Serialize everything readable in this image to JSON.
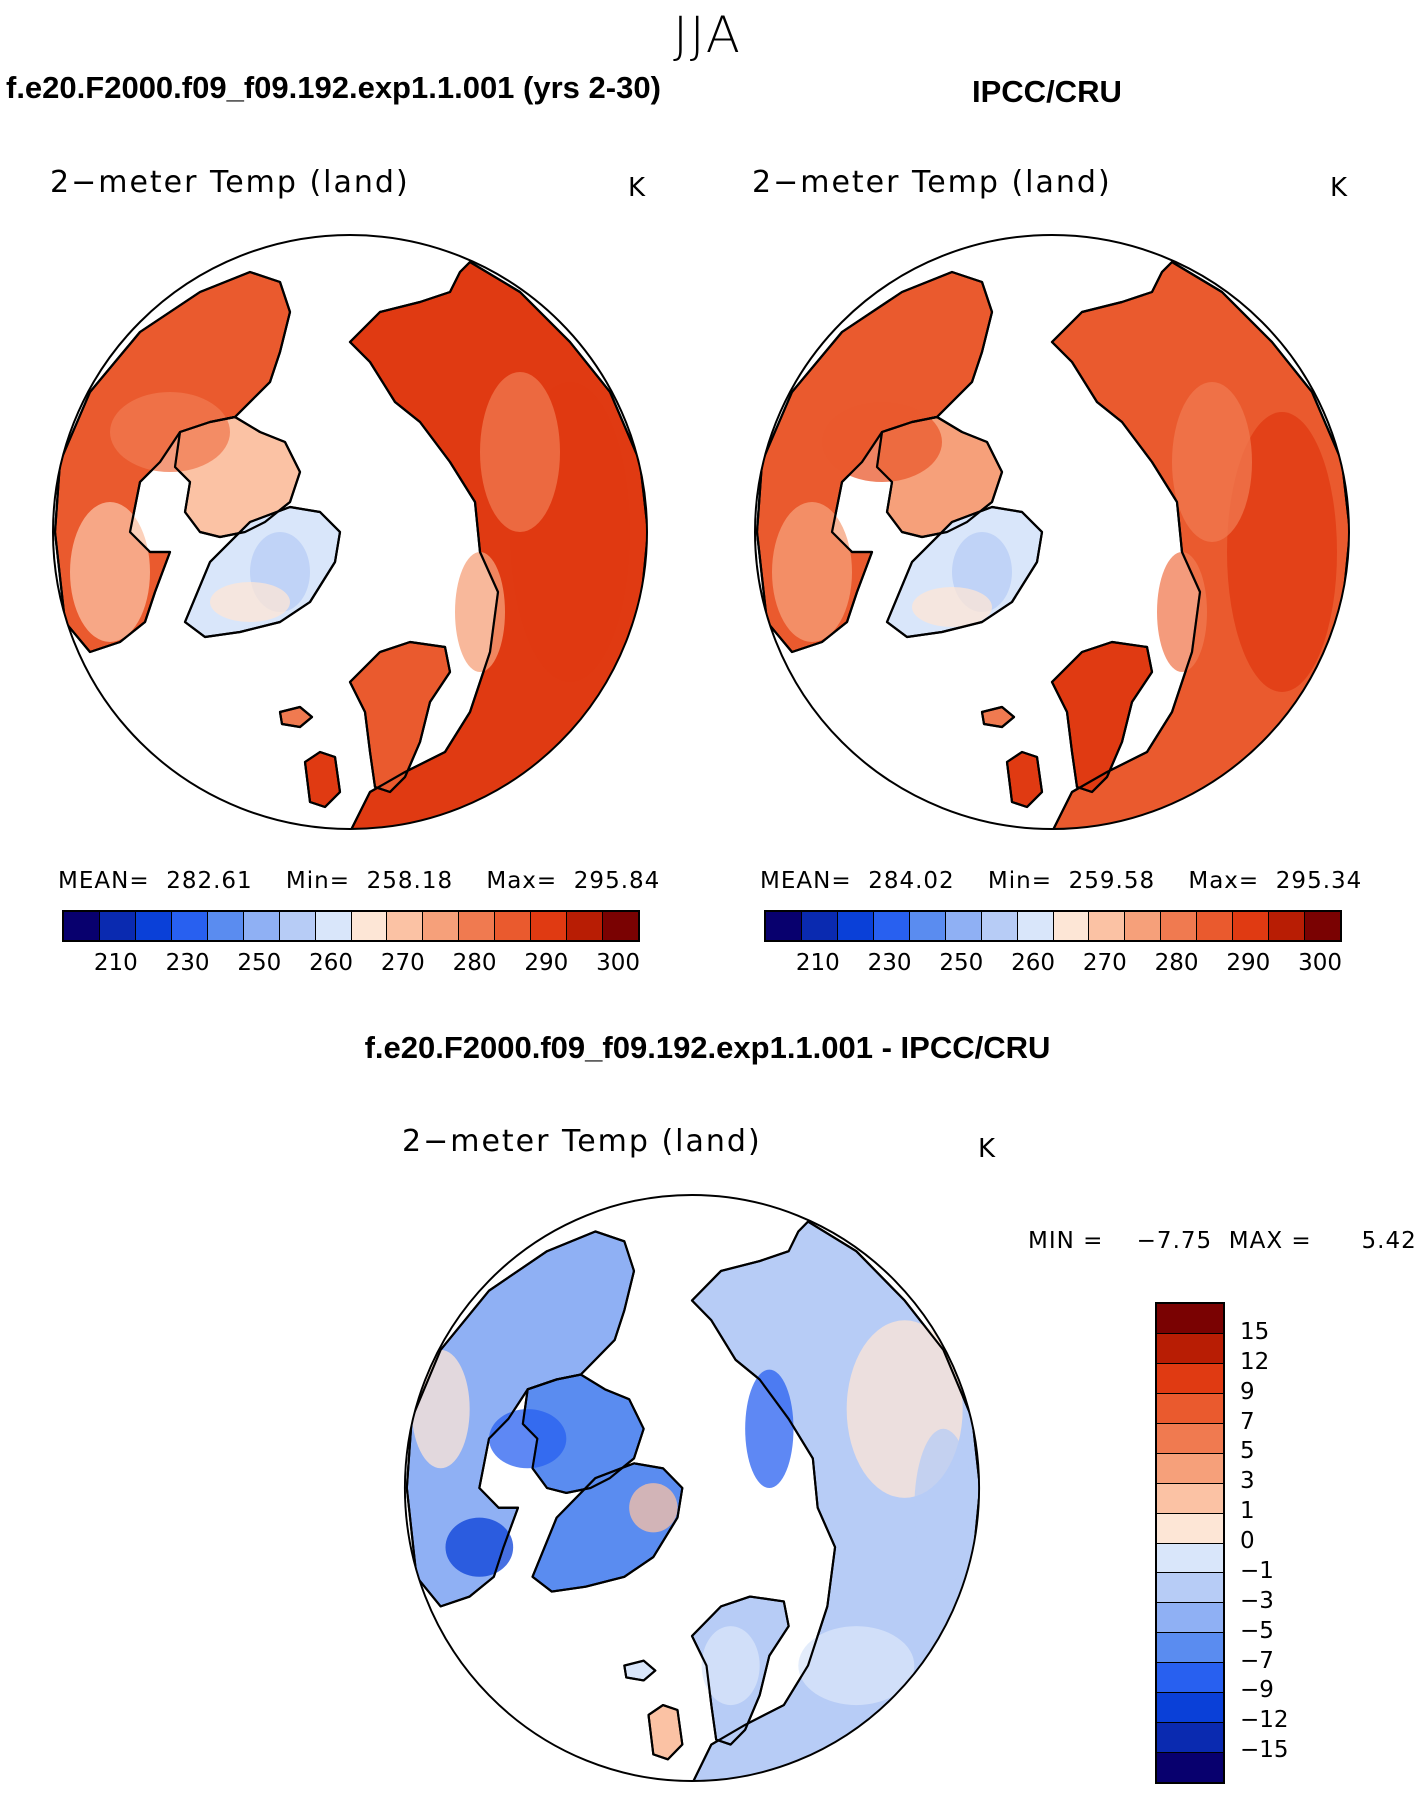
{
  "season": "JJA",
  "palette_abs": [
    "#08006e",
    "#0a2ab0",
    "#0a40d8",
    "#2860f0",
    "#5a8cf0",
    "#8fb0f4",
    "#b7ccf6",
    "#d9e6fa",
    "#fde6d6",
    "#fbc2a4",
    "#f6a07a",
    "#f07a50",
    "#ea5a2e",
    "#e03a12",
    "#b81d04",
    "#7a0202"
  ],
  "palette_diff": [
    "#08006e",
    "#0a2ab0",
    "#0a40d8",
    "#2860f0",
    "#5a8cf0",
    "#8fb0f4",
    "#b7ccf6",
    "#d9e6fa",
    "#fde6d6",
    "#fbc2a4",
    "#f6a07a",
    "#f07a50",
    "#ea5a2e",
    "#e03a12",
    "#b81d04",
    "#7a0202"
  ],
  "panels": {
    "model": {
      "title": "f.e20.F2000.f09_f09.192.exp1.1.001 (yrs 2-30)",
      "variable": "2−meter Temp (land)",
      "units": "K",
      "stats": "MEAN=  282.61    Min=  258.18    Max=  295.84",
      "colorbar_ticks": [
        "210",
        "230",
        "250",
        "260",
        "270",
        "280",
        "290",
        "300"
      ]
    },
    "obs": {
      "title": "IPCC/CRU",
      "variable": "2−meter Temp (land)",
      "units": "K",
      "stats": "MEAN=  284.02    Min=  259.58    Max=  295.34",
      "colorbar_ticks": [
        "210",
        "230",
        "250",
        "260",
        "270",
        "280",
        "290",
        "300"
      ]
    },
    "diff": {
      "title": "f.e20.F2000.f09_f09.192.exp1.1.001 - IPCC/CRU",
      "variable": "2−meter Temp (land)",
      "units": "K",
      "stats": "MIN =    −7.75  MAX =      5.42",
      "colorbar_ticks": [
        "15",
        "12",
        "9",
        "7",
        "5",
        "3",
        "1",
        "0",
        "−1",
        "−3",
        "−5",
        "−7",
        "−9",
        "−12",
        "−15"
      ]
    }
  }
}
